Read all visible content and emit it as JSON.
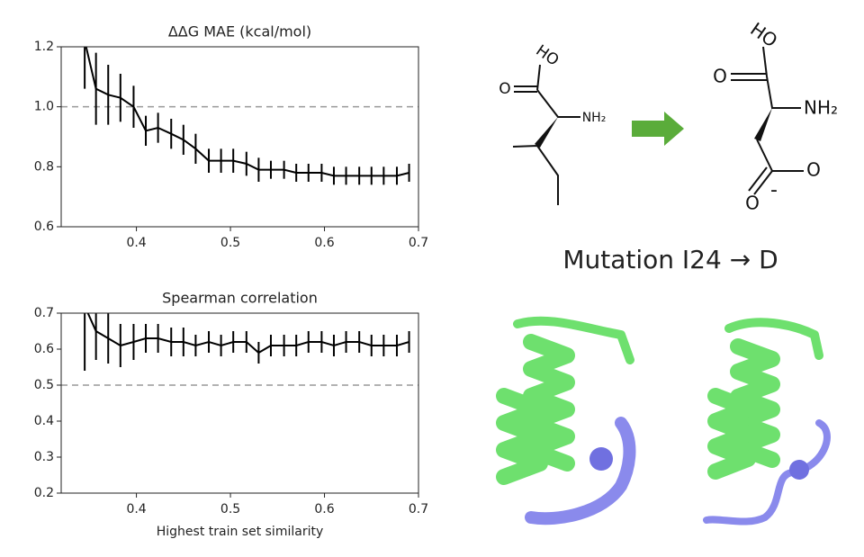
{
  "chart_data": [
    {
      "type": "line",
      "title": "ΔΔG MAE (kcal/mol)",
      "color": "#000000",
      "x": [
        0.345,
        0.357,
        0.37,
        0.383,
        0.397,
        0.41,
        0.423,
        0.437,
        0.45,
        0.463,
        0.477,
        0.49,
        0.503,
        0.517,
        0.53,
        0.543,
        0.557,
        0.57,
        0.583,
        0.597,
        0.61,
        0.623,
        0.637,
        0.65,
        0.663,
        0.677,
        0.69
      ],
      "values": [
        1.22,
        1.06,
        1.04,
        1.03,
        1.0,
        0.92,
        0.93,
        0.91,
        0.89,
        0.86,
        0.82,
        0.82,
        0.82,
        0.81,
        0.79,
        0.79,
        0.79,
        0.78,
        0.78,
        0.78,
        0.77,
        0.77,
        0.77,
        0.77,
        0.77,
        0.77,
        0.78
      ],
      "errors": [
        0.16,
        0.12,
        0.1,
        0.08,
        0.07,
        0.05,
        0.05,
        0.05,
        0.05,
        0.05,
        0.04,
        0.04,
        0.04,
        0.04,
        0.04,
        0.03,
        0.03,
        0.03,
        0.03,
        0.03,
        0.03,
        0.03,
        0.03,
        0.03,
        0.03,
        0.03,
        0.03
      ],
      "hline": 1.0,
      "xlim": [
        0.32,
        0.7
      ],
      "ylim": [
        0.6,
        1.2
      ],
      "xticks": [
        0.4,
        0.5,
        0.6,
        0.7
      ],
      "yticks": [
        0.6,
        0.8,
        {
          "value": 1,
          "label": "1.0"
        },
        1.2
      ]
    },
    {
      "type": "line",
      "title": "Spearman correlation",
      "x_label": "Highest train set similarity",
      "color": "#000000",
      "x": [
        0.345,
        0.357,
        0.37,
        0.383,
        0.397,
        0.41,
        0.423,
        0.437,
        0.45,
        0.463,
        0.477,
        0.49,
        0.503,
        0.517,
        0.53,
        0.543,
        0.557,
        0.57,
        0.583,
        0.597,
        0.61,
        0.623,
        0.637,
        0.65,
        0.663,
        0.677,
        0.69
      ],
      "values": [
        0.72,
        0.65,
        0.63,
        0.61,
        0.62,
        0.63,
        0.63,
        0.62,
        0.62,
        0.61,
        0.62,
        0.61,
        0.62,
        0.62,
        0.59,
        0.61,
        0.61,
        0.61,
        0.62,
        0.62,
        0.61,
        0.62,
        0.62,
        0.61,
        0.61,
        0.61,
        0.62
      ],
      "errors": [
        0.18,
        0.08,
        0.07,
        0.06,
        0.05,
        0.04,
        0.04,
        0.04,
        0.04,
        0.03,
        0.03,
        0.03,
        0.03,
        0.03,
        0.03,
        0.03,
        0.03,
        0.03,
        0.03,
        0.03,
        0.03,
        0.03,
        0.03,
        0.03,
        0.03,
        0.03,
        0.03
      ],
      "hline": 0.5,
      "xlim": [
        0.32,
        0.7
      ],
      "ylim": [
        0.2,
        0.7
      ],
      "xticks": [
        0.4,
        0.5,
        0.6,
        0.7
      ],
      "yticks": [
        0.2,
        0.3,
        0.4,
        0.5,
        0.6,
        0.7
      ]
    }
  ],
  "figure": {
    "caption": "Mutation I24 → D",
    "left_molecule": [
      "HO",
      "O",
      "NH₂"
    ],
    "right_molecule": [
      "HO",
      "O",
      "NH₂",
      "O",
      "O",
      "-"
    ]
  }
}
